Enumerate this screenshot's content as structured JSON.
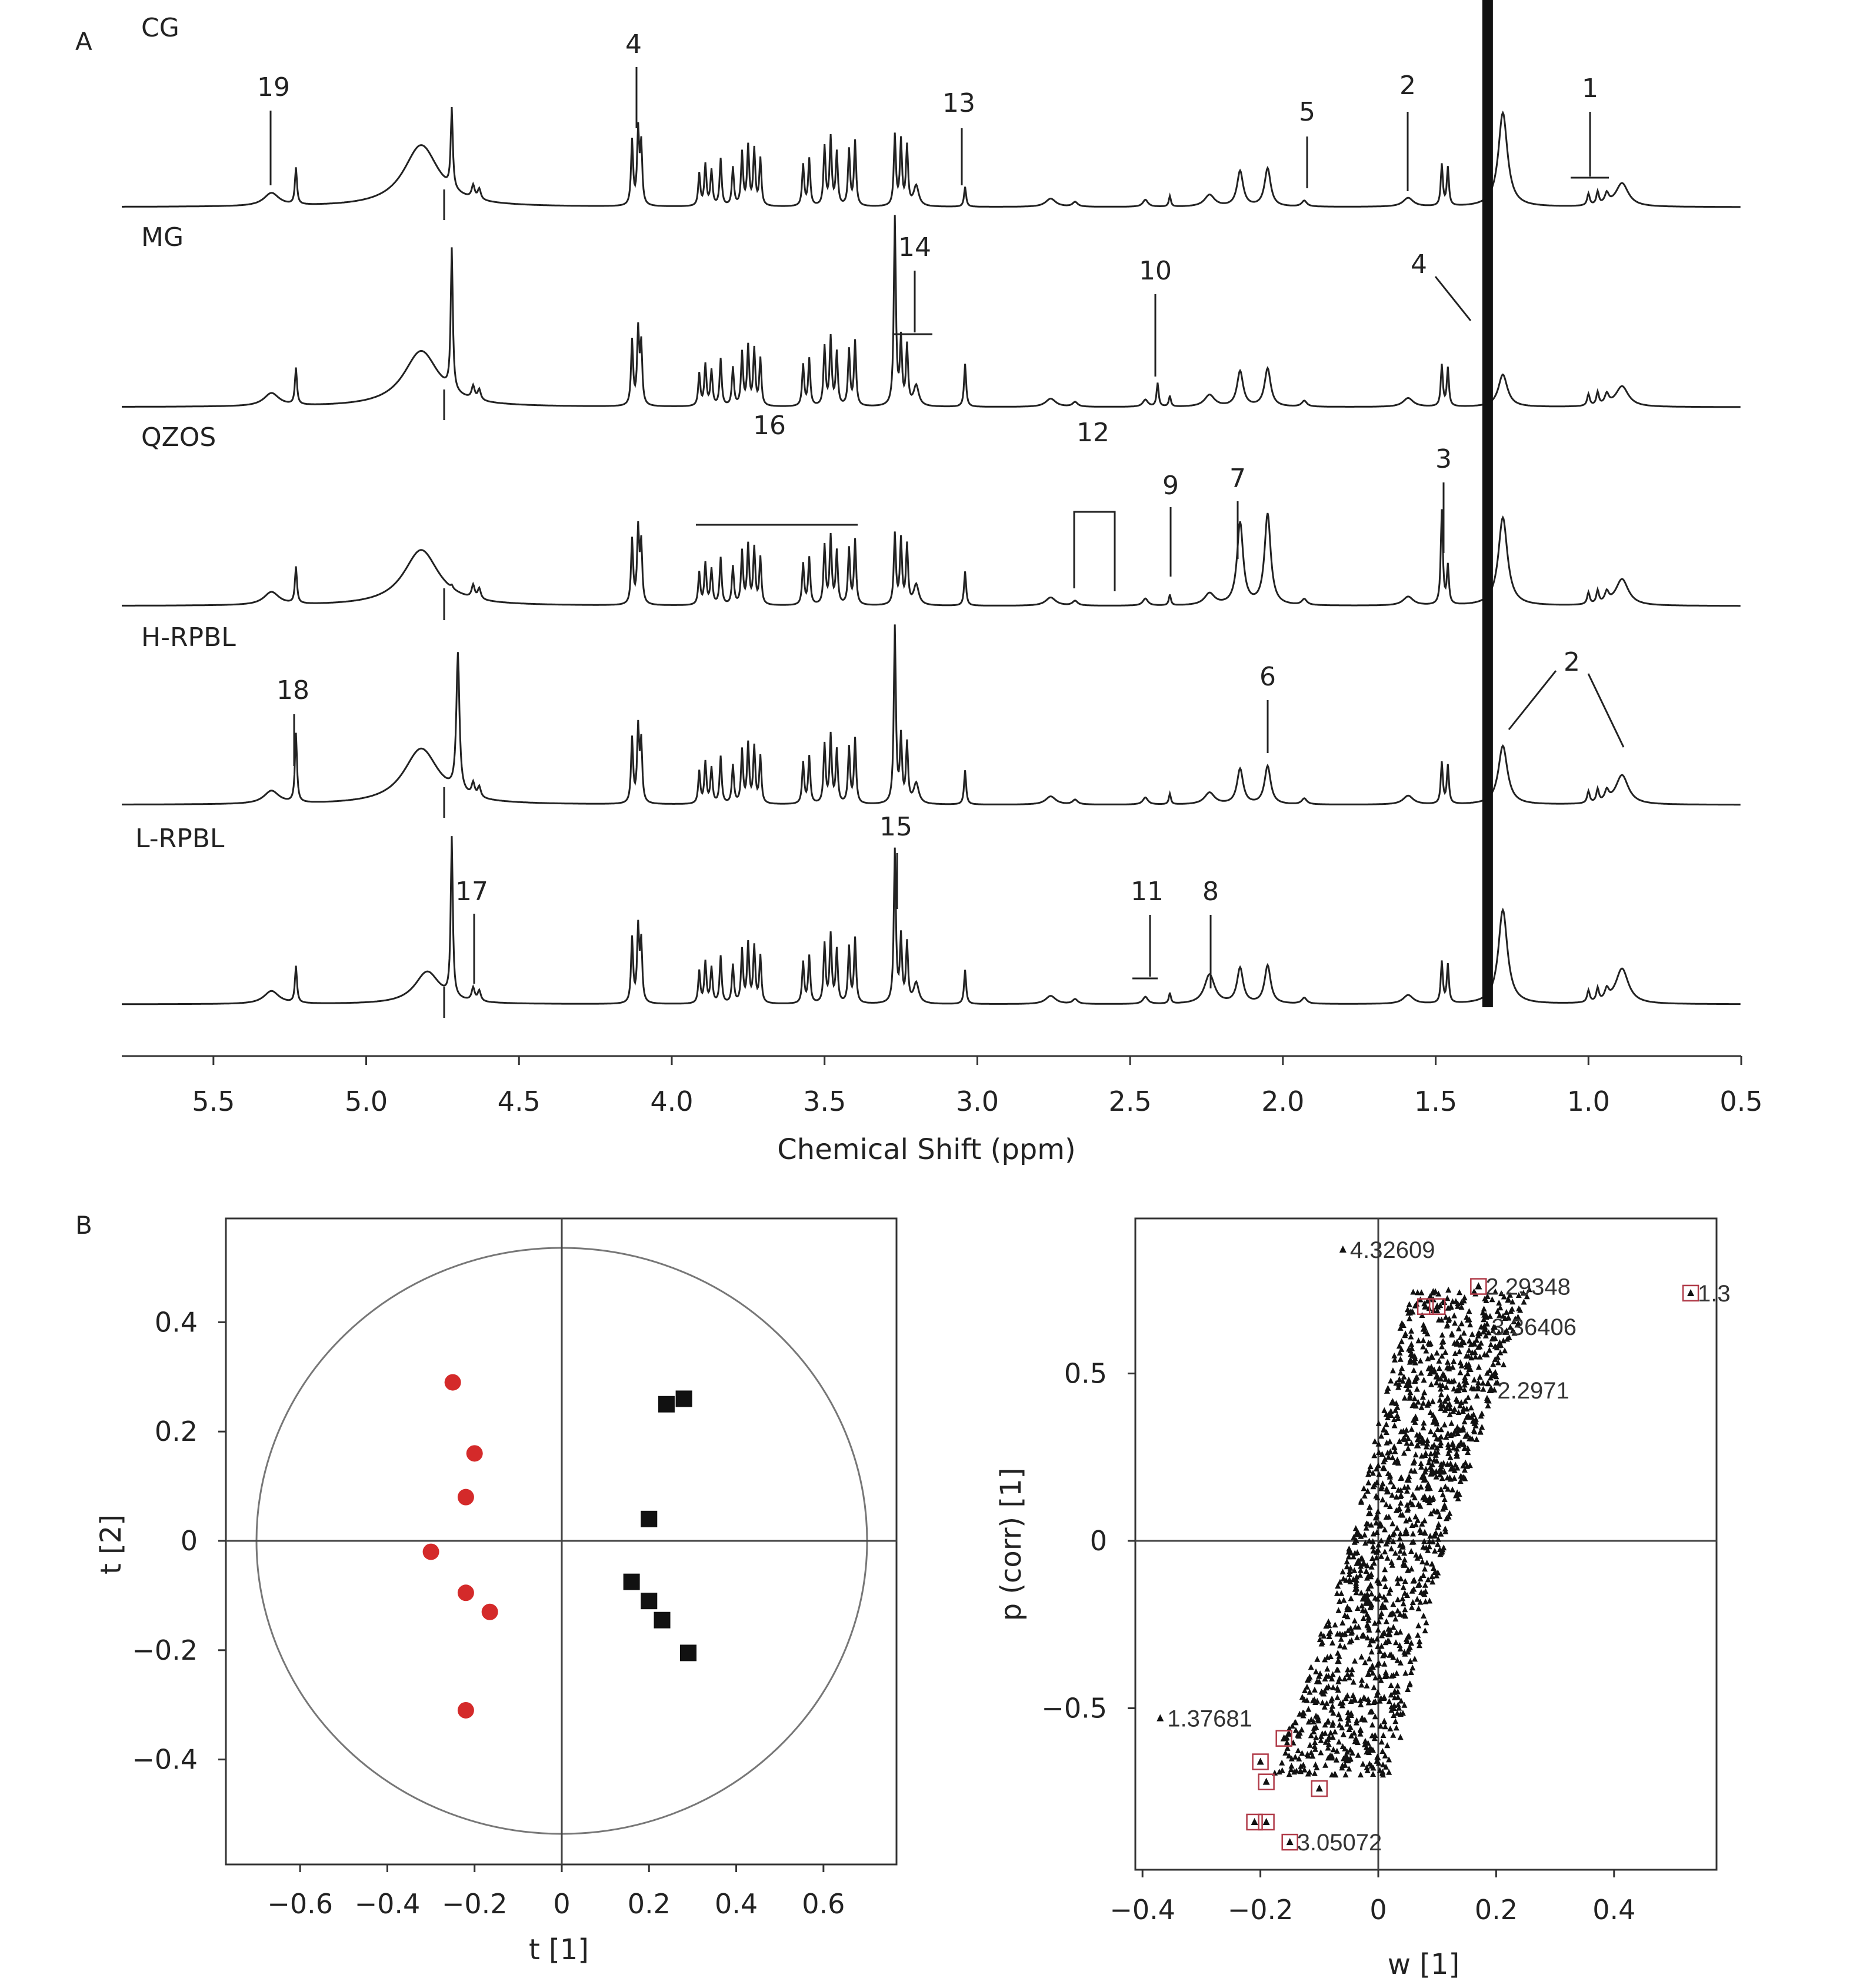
{
  "panel_a": {
    "letter": "A",
    "spectra": [
      "CG",
      "MG",
      "QZOS",
      "H-RPBL",
      "L-RPBL"
    ],
    "xlabel": "Chemical Shift (ppm)",
    "xticks": [
      "5.5",
      "5.0",
      "4.5",
      "4.0",
      "3.5",
      "3.0",
      "2.5",
      "2.0",
      "1.5",
      "1.0",
      "0.5"
    ],
    "peak_labels": [
      "19",
      "4",
      "13",
      "5",
      "2",
      "1",
      "14",
      "10",
      "4",
      "16",
      "12",
      "9",
      "7",
      "3",
      "18",
      "6",
      "2",
      "15",
      "17",
      "11",
      "8"
    ]
  },
  "panel_b": {
    "letter": "B",
    "score_plot": {
      "xlabel": "t [1]",
      "ylabel": "t [2]",
      "xticks": [
        "−0.6",
        "−0.4",
        "−0.2",
        "0",
        "0.2",
        "0.4",
        "0.6"
      ],
      "yticks": [
        "0.4",
        "0.2",
        "0",
        "−0.2",
        "−0.4"
      ]
    },
    "loading_plot": {
      "xlabel": "w [1]",
      "ylabel": "p (corr) [1]",
      "xticks": [
        "−0.4",
        "−0.2",
        "0",
        "0.2",
        "0.4"
      ],
      "yticks": [
        "0.5",
        "0",
        "−0.5"
      ],
      "labels": [
        "4.32609",
        "2.29348",
        "1.3",
        "3.36406",
        "2.2971",
        "1.37681",
        "3.05072"
      ]
    }
  },
  "chart_data": [
    {
      "type": "line",
      "xlabel": "Chemical Shift (ppm)",
      "xlim": [
        5.8,
        0.5
      ],
      "x_reversed": true,
      "series": [
        {
          "name": "CG",
          "peaks_ppm": [
            5.31,
            5.23,
            4.82,
            4.72,
            4.65,
            4.11,
            3.9,
            3.75,
            3.5,
            3.25,
            3.04,
            2.14,
            2.05,
            1.93,
            1.59,
            1.48,
            1.33,
            1.28,
            1.0,
            0.89
          ]
        },
        {
          "name": "MG",
          "peaks_ppm": [
            5.31,
            5.23,
            4.82,
            4.72,
            4.65,
            4.11,
            3.9,
            3.75,
            3.5,
            3.27,
            3.25,
            3.04,
            2.41,
            2.14,
            2.05,
            1.48,
            1.33,
            1.28,
            1.0,
            0.89
          ]
        },
        {
          "name": "QZOS",
          "peaks_ppm": [
            5.31,
            5.23,
            4.82,
            4.72,
            4.65,
            4.11,
            3.9,
            3.75,
            3.5,
            3.27,
            3.25,
            3.04,
            2.37,
            2.14,
            2.05,
            1.48,
            1.33,
            1.28,
            1.0,
            0.89
          ]
        },
        {
          "name": "H-RPBL",
          "peaks_ppm": [
            5.31,
            5.23,
            4.82,
            4.7,
            4.65,
            4.11,
            3.9,
            3.75,
            3.5,
            3.27,
            3.25,
            3.04,
            2.14,
            2.05,
            1.48,
            1.33,
            1.28,
            1.0,
            0.89
          ]
        },
        {
          "name": "L-RPBL",
          "peaks_ppm": [
            5.31,
            5.23,
            4.8,
            4.72,
            4.65,
            4.11,
            3.9,
            3.75,
            3.5,
            3.27,
            3.25,
            3.04,
            2.24,
            2.14,
            2.05,
            1.48,
            1.33,
            1.28,
            1.0,
            0.89
          ]
        }
      ]
    },
    {
      "type": "scatter",
      "xlabel": "t [1]",
      "ylabel": "t [2]",
      "xlim": [
        -0.8,
        0.76
      ],
      "ylim": [
        -0.57,
        0.59
      ],
      "series": [
        {
          "marker": "circle",
          "color": "#d42a2a",
          "points": [
            [
              -0.25,
              0.29
            ],
            [
              -0.2,
              0.16
            ],
            [
              -0.22,
              0.08
            ],
            [
              -0.3,
              -0.02
            ],
            [
              -0.22,
              -0.095
            ],
            [
              -0.165,
              -0.13
            ],
            [
              -0.22,
              -0.31
            ]
          ]
        },
        {
          "marker": "square",
          "color": "#111111",
          "points": [
            [
              0.24,
              0.25
            ],
            [
              0.28,
              0.26
            ],
            [
              0.2,
              0.04
            ],
            [
              0.16,
              -0.075
            ],
            [
              0.2,
              -0.11
            ],
            [
              0.23,
              -0.145
            ],
            [
              0.29,
              -0.205
            ]
          ]
        }
      ],
      "ellipse_radius": [
        0.7,
        0.54
      ]
    },
    {
      "type": "scatter",
      "xlabel": "w [1]",
      "ylabel": "p (corr) [1]",
      "xlim": [
        -0.42,
        0.58
      ],
      "ylim": [
        -0.95,
        0.95
      ],
      "highlighted_labels": [
        {
          "label": "4.32609",
          "w": -0.06,
          "p": 0.87
        },
        {
          "label": "2.29348",
          "w": 0.17,
          "p": 0.76
        },
        {
          "label": "1.3",
          "w": 0.53,
          "p": 0.74
        },
        {
          "label": "3.36406",
          "w": 0.18,
          "p": 0.64
        },
        {
          "label": "2.2971",
          "w": 0.19,
          "p": 0.45
        },
        {
          "label": "1.37681",
          "w": -0.37,
          "p": -0.53
        },
        {
          "label": "3.05072",
          "w": -0.15,
          "p": -0.9
        }
      ],
      "boxed_points": [
        [
          0.08,
          0.7
        ],
        [
          0.1,
          0.7
        ],
        [
          0.17,
          0.76
        ],
        [
          0.53,
          0.74
        ],
        [
          -0.16,
          -0.59
        ],
        [
          -0.2,
          -0.66
        ],
        [
          -0.19,
          -0.72
        ],
        [
          -0.1,
          -0.74
        ],
        [
          -0.21,
          -0.84
        ],
        [
          -0.19,
          -0.84
        ],
        [
          -0.15,
          -0.9
        ]
      ]
    }
  ]
}
